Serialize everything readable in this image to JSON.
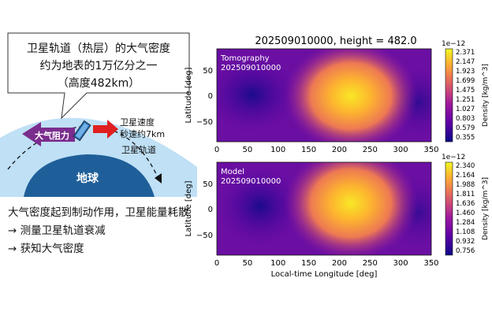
{
  "left": {
    "callout_line1": "卫星轨道（热层）的大气密度",
    "callout_line2": "约为地表的1万亿分之一",
    "callout_line3": "（高度482km）",
    "drag_label": "大气阻力",
    "velocity_line1": "卫星速度",
    "velocity_line2": "秒速约7km",
    "orbit_label": "卫星轨道",
    "earth_label": "地球",
    "caption1": "大气密度起到制动作用，卫星能量耗散",
    "caption2": "→ 测量卫星轨道衰减",
    "caption3": "→ 获知大气密度"
  },
  "figure": {
    "title": "202509010000, height = 482.0",
    "xlabel": "Local-time Longitude [deg]",
    "ylabel_top": "Latitude [deg]",
    "ylabel_bottom": "Latitude [deg]",
    "x_ticks": [
      "0",
      "50",
      "100",
      "150",
      "200",
      "250",
      "300",
      "350"
    ],
    "y_ticks": [
      "50",
      "0",
      "−50"
    ],
    "panels": [
      {
        "name": "Tomography",
        "label_line1": "Tomography",
        "label_line2": "202509010000",
        "colorbar_label": "Density [kg/m^3]",
        "colorbar_exp": "1e−12",
        "colorbar_ticks": [
          "2.371",
          "2.147",
          "1.923",
          "1.699",
          "1.475",
          "1.251",
          "1.027",
          "0.803",
          "0.579",
          "0.355"
        ]
      },
      {
        "name": "Model",
        "label_line1": "Model",
        "label_line2": "202509010000",
        "colorbar_label": "Density [kg/m^3]",
        "colorbar_exp": "1e−12",
        "colorbar_ticks": [
          "2.340",
          "2.164",
          "1.988",
          "1.811",
          "1.636",
          "1.460",
          "1.284",
          "1.108",
          "0.932",
          "0.756"
        ]
      }
    ]
  }
}
